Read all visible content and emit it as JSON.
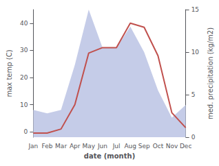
{
  "chart_data": {
    "type": "line",
    "xlabel": "date (month)",
    "ylabel": "max temp (C)",
    "y2label": "med. precipitation (kg/m2)",
    "categories": [
      "Jan",
      "Feb",
      "Mar",
      "Apr",
      "May",
      "Jun",
      "Jul",
      "Aug",
      "Sep",
      "Oct",
      "Nov",
      "Dec"
    ],
    "series": [
      {
        "type": "area",
        "axis": "y2",
        "color": "#c5cce8",
        "values": [
          3.2,
          2.8,
          3.2,
          8.5,
          15.0,
          10.5,
          10.5,
          13.0,
          10.0,
          5.5,
          2.3,
          3.8
        ]
      },
      {
        "type": "line",
        "axis": "y",
        "color": "#c0504d",
        "values": [
          -0.5,
          -0.5,
          1.0,
          10.0,
          29.0,
          31.0,
          31.0,
          40.0,
          38.5,
          28.0,
          7.0,
          1.5
        ]
      }
    ],
    "ylim": [
      -2,
      45
    ],
    "yticks": [
      0,
      10,
      20,
      30,
      40
    ],
    "y2lim": [
      0,
      15
    ],
    "y2ticks": [
      0,
      5,
      10,
      15
    ],
    "grid": false
  }
}
